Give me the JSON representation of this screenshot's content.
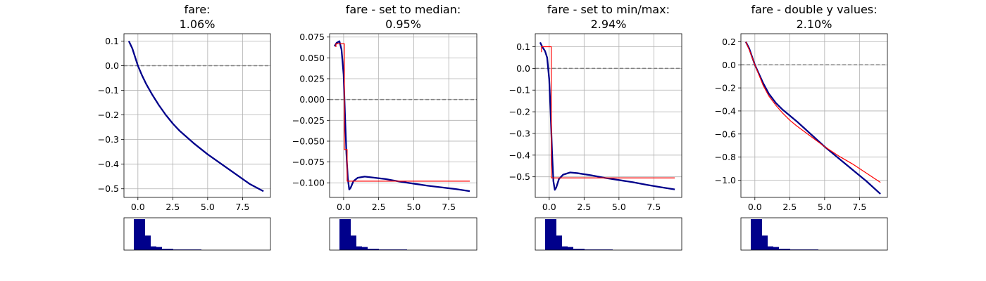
{
  "colors": {
    "main_line": "#00008b",
    "fit_line": "#ff0000",
    "zero_line": "#808080",
    "grid": "#b0b0b0",
    "hist": "#00008b"
  },
  "chart_data": [
    {
      "type": "line",
      "title": "fare:",
      "subtitle": "1.06%",
      "xlim": [
        -1.0,
        9.5
      ],
      "ylim": [
        -0.535,
        0.13
      ],
      "xticks": [
        0.0,
        2.5,
        5.0,
        7.5
      ],
      "xtick_labels": [
        "0.0",
        "2.5",
        "5.0",
        "7.5"
      ],
      "yticks": [
        0.1,
        0.0,
        -0.1,
        -0.2,
        -0.3,
        -0.4,
        -0.5
      ],
      "ytick_labels": [
        "0.1",
        "0.0",
        "−0.1",
        "−0.2",
        "−0.3",
        "−0.4",
        "−0.5"
      ],
      "grid": true,
      "zero_line": 0,
      "series": [
        {
          "x": [
            -0.65,
            -0.4,
            -0.2,
            0.0,
            0.3,
            0.6,
            1.0,
            1.5,
            2.0,
            2.5,
            3.0,
            4.0,
            5.0,
            6.0,
            7.0,
            8.0,
            9.0
          ],
          "y": [
            0.1,
            0.07,
            0.035,
            0.0,
            -0.04,
            -0.075,
            -0.115,
            -0.16,
            -0.2,
            -0.235,
            -0.265,
            -0.315,
            -0.36,
            -0.4,
            -0.44,
            -0.48,
            -0.51
          ]
        }
      ],
      "hist": [
        0.0,
        1.0,
        1.0,
        0.47,
        0.12,
        0.1,
        0.04,
        0.04,
        0.02,
        0.02,
        0.02,
        0.02,
        0.02
      ]
    },
    {
      "type": "line",
      "title": "fare - set to median:",
      "subtitle": "0.95%",
      "xlim": [
        -1.0,
        9.5
      ],
      "ylim": [
        -0.1175,
        0.079
      ],
      "xticks": [
        0.0,
        2.5,
        5.0,
        7.5
      ],
      "xtick_labels": [
        "0.0",
        "2.5",
        "5.0",
        "7.5"
      ],
      "yticks": [
        0.075,
        0.05,
        0.025,
        0.0,
        -0.025,
        -0.05,
        -0.075,
        -0.1
      ],
      "ytick_labels": [
        "0.075",
        "0.050",
        "0.025",
        "0.000",
        "−0.025",
        "−0.050",
        "−0.075",
        "−0.100"
      ],
      "grid": true,
      "zero_line": 0,
      "series": [
        {
          "x": [
            -0.65,
            -0.5,
            -0.3,
            -0.15,
            0.0,
            0.1,
            0.2,
            0.3,
            0.4,
            0.5,
            0.7,
            1.0,
            1.5,
            2.0,
            3.0,
            4.0,
            5.0,
            6.0,
            7.0,
            8.0,
            9.0
          ],
          "y": [
            0.064,
            0.068,
            0.07,
            0.06,
            0.03,
            -0.02,
            -0.065,
            -0.095,
            -0.108,
            -0.106,
            -0.098,
            -0.094,
            -0.0925,
            -0.0935,
            -0.0955,
            -0.0985,
            -0.101,
            -0.1035,
            -0.1055,
            -0.1075,
            -0.11
          ]
        },
        {
          "x": [
            -0.55,
            -0.55,
            0.05,
            0.05,
            0.25,
            0.25,
            9.0
          ],
          "y": [
            0.063,
            0.067,
            0.067,
            -0.06,
            -0.06,
            -0.098,
            -0.098
          ]
        }
      ],
      "hist": [
        0.0,
        1.0,
        1.0,
        0.47,
        0.12,
        0.1,
        0.04,
        0.04,
        0.02,
        0.02,
        0.02,
        0.02,
        0.02
      ]
    },
    {
      "type": "line",
      "title": "fare - set to min/max:",
      "subtitle": "2.94%",
      "xlim": [
        -1.0,
        9.5
      ],
      "ylim": [
        -0.595,
        0.16
      ],
      "xticks": [
        0.0,
        2.5,
        5.0,
        7.5
      ],
      "xtick_labels": [
        "0.0",
        "2.5",
        "5.0",
        "7.5"
      ],
      "yticks": [
        0.1,
        0.0,
        -0.1,
        -0.2,
        -0.3,
        -0.4,
        -0.5
      ],
      "ytick_labels": [
        "0.1",
        "0.0",
        "−0.1",
        "−0.2",
        "−0.3",
        "−0.4",
        "−0.5"
      ],
      "grid": true,
      "zero_line": 0,
      "series": [
        {
          "x": [
            -0.65,
            -0.5,
            -0.3,
            -0.15,
            0.0,
            0.1,
            0.2,
            0.3,
            0.4,
            0.5,
            0.7,
            1.0,
            1.5,
            2.0,
            3.0,
            4.0,
            5.0,
            6.0,
            7.0,
            8.0,
            9.0
          ],
          "y": [
            0.12,
            0.1,
            0.08,
            0.05,
            -0.05,
            -0.2,
            -0.38,
            -0.52,
            -0.56,
            -0.55,
            -0.51,
            -0.49,
            -0.48,
            -0.483,
            -0.493,
            -0.505,
            -0.515,
            -0.525,
            -0.537,
            -0.548,
            -0.558
          ]
        },
        {
          "x": [
            -0.55,
            -0.55,
            0.15,
            0.15,
            9.0
          ],
          "y": [
            0.075,
            0.1,
            0.1,
            -0.505,
            -0.505
          ]
        }
      ],
      "hist": [
        0.0,
        1.0,
        1.0,
        0.47,
        0.12,
        0.1,
        0.04,
        0.04,
        0.02,
        0.02,
        0.02,
        0.02,
        0.02
      ]
    },
    {
      "type": "line",
      "title": "fare - double y values:",
      "subtitle": "2.10%",
      "xlim": [
        -1.0,
        9.5
      ],
      "ylim": [
        -1.15,
        0.27
      ],
      "xticks": [
        0.0,
        2.5,
        5.0,
        7.5
      ],
      "xtick_labels": [
        "0.0",
        "2.5",
        "5.0",
        "7.5"
      ],
      "yticks": [
        0.2,
        0.0,
        -0.2,
        -0.4,
        -0.6,
        -0.8,
        -1.0
      ],
      "ytick_labels": [
        "0.2",
        "0.0",
        "−0.2",
        "−0.4",
        "−0.6",
        "−0.8",
        "−1.0"
      ],
      "grid": true,
      "zero_line": 0,
      "series": [
        {
          "x": [
            -0.65,
            -0.4,
            -0.2,
            0.0,
            0.3,
            0.6,
            1.0,
            1.5,
            2.0,
            2.5,
            3.0,
            4.0,
            5.0,
            6.0,
            7.0,
            8.0,
            9.0
          ],
          "y": [
            0.2,
            0.14,
            0.07,
            0.0,
            -0.08,
            -0.16,
            -0.25,
            -0.33,
            -0.39,
            -0.44,
            -0.49,
            -0.6,
            -0.71,
            -0.81,
            -0.91,
            -1.01,
            -1.12
          ]
        },
        {
          "x": [
            -0.65,
            -0.4,
            -0.2,
            0.0,
            0.3,
            0.6,
            1.0,
            1.5,
            2.0,
            2.5,
            3.0,
            4.0,
            5.0,
            6.0,
            7.0,
            8.0,
            9.0
          ],
          "y": [
            0.2,
            0.13,
            0.065,
            0.0,
            -0.09,
            -0.18,
            -0.27,
            -0.35,
            -0.42,
            -0.48,
            -0.53,
            -0.62,
            -0.71,
            -0.79,
            -0.86,
            -0.94,
            -1.02
          ]
        }
      ],
      "hist": [
        0.0,
        1.0,
        1.0,
        0.47,
        0.12,
        0.1,
        0.04,
        0.04,
        0.02,
        0.02,
        0.02,
        0.02,
        0.02
      ]
    }
  ]
}
